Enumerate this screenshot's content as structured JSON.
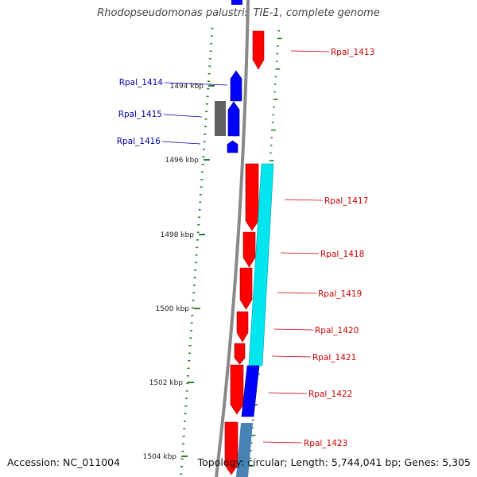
{
  "title": "Rhodopseudomonas palustris TIE-1, complete genome",
  "footer": {
    "accession": "Accession: NC_011004",
    "summary": "Topology: circular; Length: 5,744,041 bp; Genes: 5,305"
  },
  "colors": {
    "forward_gene": "#ff0000",
    "reverse_gene": "#0000ff",
    "cyan_feature": "#00e5ee",
    "steel_feature": "#4682b4",
    "grey_feature": "#606060",
    "backbone": "#888888",
    "tick": "#2e7d32",
    "forward_label": "#cc0000",
    "reverse_label": "#0000aa"
  },
  "scale": {
    "tick_labels": [
      "1494 kbp",
      "1496 kbp",
      "1498 kbp",
      "1500 kbp",
      "1502 kbp",
      "1504 kbp"
    ]
  },
  "genes": {
    "forward": [
      "Rpal_1413",
      "Rpal_1417",
      "Rpal_1418",
      "Rpal_1419",
      "Rpal_1420",
      "Rpal_1421",
      "Rpal_1422",
      "Rpal_1423"
    ],
    "reverse": [
      "Rpal_1414",
      "Rpal_1415",
      "Rpal_1416"
    ]
  }
}
